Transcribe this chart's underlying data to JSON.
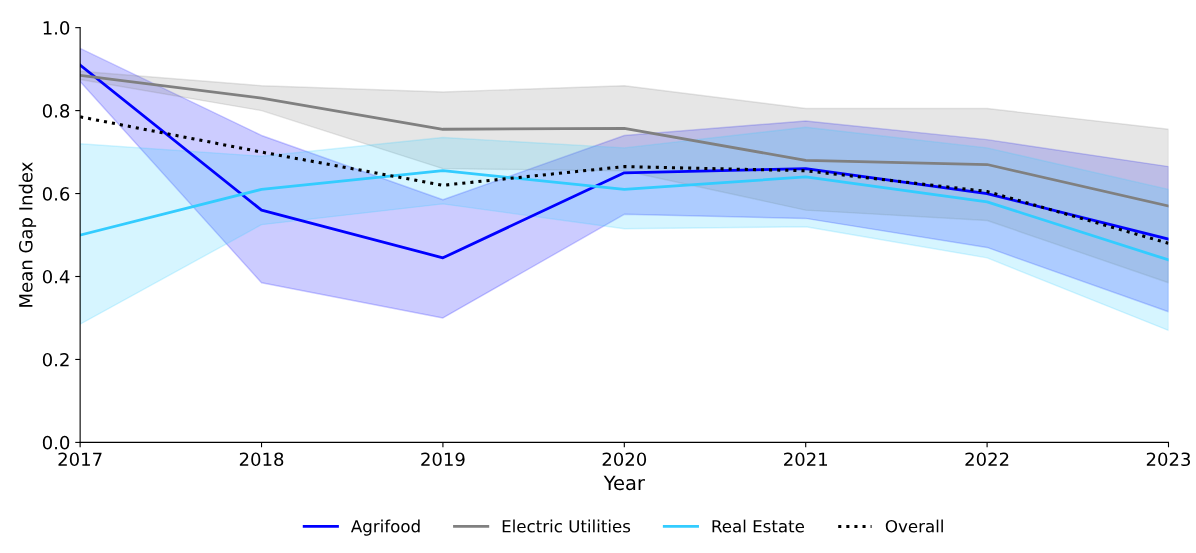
{
  "chart_data": {
    "type": "line",
    "xlabel": "Year",
    "ylabel": "Mean Gap Index",
    "x": [
      2017,
      2018,
      2019,
      2020,
      2021,
      2022,
      2023
    ],
    "series": [
      {
        "name": "Agrifood",
        "color": "#0000ff",
        "line_style": "solid",
        "values": [
          0.91,
          0.56,
          0.445,
          0.65,
          0.66,
          0.6,
          0.49
        ],
        "lower": [
          0.87,
          0.385,
          0.3,
          0.55,
          0.54,
          0.47,
          0.315
        ],
        "upper": [
          0.95,
          0.74,
          0.585,
          0.74,
          0.775,
          0.73,
          0.665
        ]
      },
      {
        "name": "Electric Utilities",
        "color": "#808080",
        "line_style": "solid",
        "values": [
          0.885,
          0.83,
          0.755,
          0.757,
          0.68,
          0.67,
          0.57
        ],
        "lower": [
          0.875,
          0.8,
          0.66,
          0.655,
          0.56,
          0.535,
          0.385
        ],
        "upper": [
          0.895,
          0.86,
          0.845,
          0.86,
          0.805,
          0.805,
          0.755
        ]
      },
      {
        "name": "Real Estate",
        "color": "#33ccff",
        "line_style": "solid",
        "values": [
          0.5,
          0.61,
          0.655,
          0.61,
          0.64,
          0.58,
          0.44
        ],
        "lower": [
          0.285,
          0.525,
          0.575,
          0.515,
          0.52,
          0.445,
          0.27
        ],
        "upper": [
          0.72,
          0.69,
          0.735,
          0.71,
          0.76,
          0.71,
          0.61
        ]
      },
      {
        "name": "Overall",
        "color": "#000000",
        "line_style": "dotted",
        "values": [
          0.785,
          0.7,
          0.62,
          0.665,
          0.655,
          0.605,
          0.48
        ]
      }
    ],
    "xlim": [
      2017,
      2023
    ],
    "xticks": [
      2017,
      2018,
      2019,
      2020,
      2021,
      2022,
      2023
    ],
    "ylim": [
      0,
      1
    ],
    "yticks": [
      {
        "value": 0,
        "label": "0.0"
      },
      {
        "value": 0.2,
        "label": "0.2"
      },
      {
        "value": 0.4,
        "label": "0.4"
      },
      {
        "value": 0.6,
        "label": "0.6"
      },
      {
        "value": 0.8,
        "label": "0.8"
      },
      {
        "value": 1,
        "label": "1.0"
      }
    ],
    "grid": false,
    "legend": "bottom",
    "marker": "none"
  }
}
